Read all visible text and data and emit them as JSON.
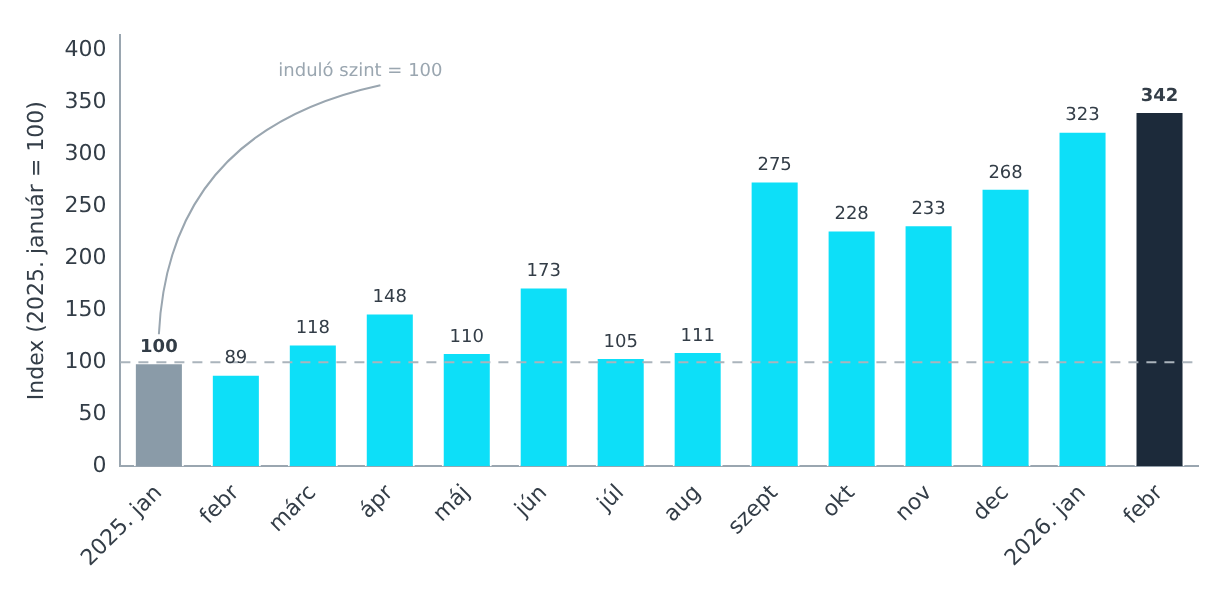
{
  "chart_data": {
    "type": "bar",
    "ylabel": "Index (2025. január = 100)",
    "categories": [
      "2025. jan",
      "febr",
      "márc",
      "ápr",
      "máj",
      "jún",
      "júl",
      "aug",
      "szept",
      "okt",
      "nov",
      "dec",
      "2026. jan",
      "febr"
    ],
    "values": [
      100,
      89,
      118,
      148,
      110,
      173,
      105,
      111,
      275,
      228,
      233,
      268,
      323,
      342
    ],
    "colors": [
      "#8a9ba8",
      "#0ddff8",
      "#0ddff8",
      "#0ddff8",
      "#0ddff8",
      "#0ddff8",
      "#0ddff8",
      "#0ddff8",
      "#0ddff8",
      "#0ddff8",
      "#0ddff8",
      "#0ddff8",
      "#0ddff8",
      "#1c2a3a"
    ],
    "ylim": [
      0,
      415
    ],
    "yticks": [
      0,
      50,
      100,
      150,
      200,
      250,
      300,
      350,
      400
    ],
    "ref_lines": [
      {
        "axis": "y",
        "value": 100,
        "color": "#aab4bc",
        "line_style": "dashed"
      }
    ],
    "annotations": [
      "induló szint = 100"
    ],
    "data_labels": true,
    "grid": false,
    "legend": false
  }
}
